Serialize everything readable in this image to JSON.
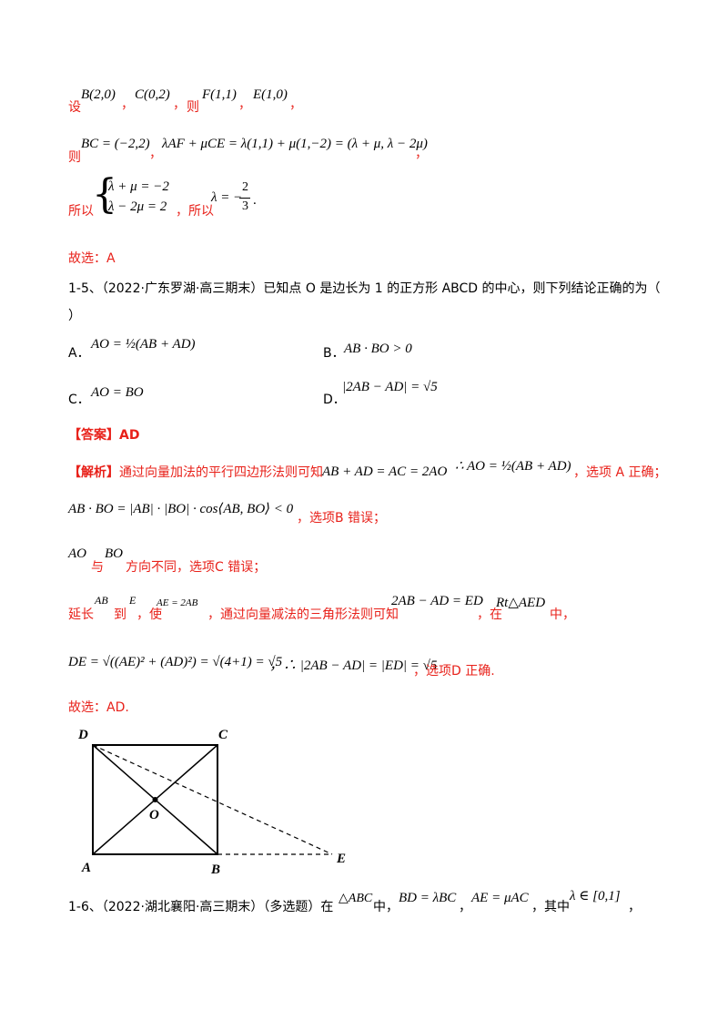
{
  "setup": {
    "she": "设",
    "pt_b": "B(2,0)",
    "pt_c": "C(0,2)",
    "comma1": "，",
    "comma2": "，",
    "ze": "则",
    "pt_f": "F(1,1)",
    "comma3": "，",
    "pt_e": "E(1,0)",
    "comma4": "，"
  },
  "vec_line": {
    "ze": "则",
    "bc": "BC = (−2,2)",
    "comma": "，",
    "expr": "λAF + μCE = λ(1,1) + μ(1,−2) = (λ + μ, λ − 2μ)",
    "comma2": "，"
  },
  "system_line": {
    "suoyi1": "所以",
    "eq1": "λ + μ = −2",
    "eq2": "λ − 2μ = 2",
    "suoyi2": "，所以",
    "lam": "λ = −",
    "num": "2",
    "den": "3",
    "period": "."
  },
  "answer1": "故选：A",
  "q15": {
    "line1": "1-5、（2022·广东罗湖·高三期末）已知点 O 是边长为 1 的正方形 ABCD 的中心，则下列结论正确的为（",
    "line2": "）",
    "a_label": "A．",
    "a_expr": "AO = ½(AB + AD)",
    "b_label": "B．",
    "b_expr": "AB · BO > 0",
    "c_label": "C．",
    "c_expr": "AO = BO",
    "d_label": "D．",
    "d_expr": "|2AB − AD| = √5"
  },
  "answer_tag": "【答案】AD",
  "analysis": {
    "p1_tag": "【解析】",
    "p1_text": "通过向量加法的平行四边形法则可知",
    "p1_expr": "AB + AD = AC = 2AO",
    "p1_therefore": "∴ AO = ½(AB + AD)",
    "p1_tail": "，选项 A 正确；",
    "p2_expr": "AB · BO = |AB| · |BO| · cos⟨AB, BO⟩ < 0",
    "p2_tail": "，选项B 错误；",
    "p3_ao": "AO",
    "p3_yu": "与",
    "p3_bo": "BO",
    "p3_tail": "方向不同，选项C 错误；",
    "p4_a": "延长",
    "p4_ab": "AB",
    "p4_b": "到",
    "p4_e": "E",
    "p4_c": "，使",
    "p4_ae": "AE = 2AB",
    "p4_d": "，通过向量减法的三角形法则可知",
    "p4_expr": "2AB − AD = ED",
    "p4_zai": "，在",
    "p4_rt": "Rt△AED",
    "p4_zhong": "中，",
    "p5_expr": "DE = √((AE)² + (AD)²) = √(4+1) = √5",
    "p5_therefore": "，∴ |2AB − AD| = |ED| = √5",
    "p5_tail": "，选项D 正确."
  },
  "answer2": "故选：AD.",
  "figure": {
    "labels": {
      "d": "D",
      "c": "C",
      "o": "O",
      "a": "A",
      "b": "B",
      "e": "E"
    }
  },
  "q16": {
    "prefix": "1-6、（2022·湖北襄阳·高三期末）（多选题）在",
    "tri": "△ABC",
    "zhong": "中，",
    "bd": "BD = λBC",
    "comma": "，",
    "ae": "AE = μAC",
    "qizhong": "，其中",
    "range": "λ ∈ [0,1]",
    "end": "，"
  }
}
